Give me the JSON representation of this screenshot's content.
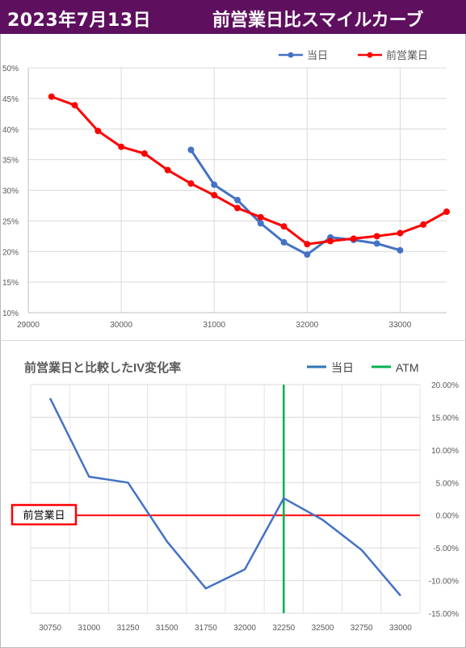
{
  "header": {
    "date": "2023年7月13日",
    "title": "前営業日比スマイルカーブ"
  },
  "chart_data": [
    {
      "type": "line",
      "title": "",
      "legend_position": "top-right",
      "x_ticks": [
        "29000",
        "30000",
        "31000",
        "32000",
        "33000"
      ],
      "y_ticks": [
        "50%",
        "45%",
        "40%",
        "35%",
        "30%",
        "25%",
        "20%",
        "15%",
        "10%"
      ],
      "xlim": [
        29000,
        33500
      ],
      "ylim": [
        10,
        50
      ],
      "grid": true,
      "series": [
        {
          "name": "当日",
          "color": "#4472c4",
          "x": [
            30750,
            31000,
            31250,
            31500,
            31750,
            32000,
            32250,
            32500,
            32750,
            33000
          ],
          "y": [
            36.6,
            30.9,
            28.4,
            24.6,
            21.5,
            19.5,
            22.3,
            21.9,
            21.3,
            20.2
          ]
        },
        {
          "name": "前営業日",
          "color": "#ff0000",
          "x": [
            29250,
            29500,
            29750,
            30000,
            30250,
            30500,
            30750,
            31000,
            31250,
            31500,
            31750,
            32000,
            32250,
            32500,
            32750,
            33000,
            33250,
            33500
          ],
          "y": [
            45.3,
            43.9,
            39.7,
            37.1,
            36.0,
            33.3,
            31.1,
            29.2,
            27.1,
            25.6,
            24.1,
            21.2,
            21.7,
            22.1,
            22.5,
            23.0,
            24.4,
            26.5
          ]
        }
      ]
    },
    {
      "type": "line",
      "title": "前営業日と比較したIV変化率",
      "legend_position": "top-right",
      "categories": [
        "30750",
        "31000",
        "31250",
        "31500",
        "31750",
        "32000",
        "32250",
        "32500",
        "32750",
        "33000"
      ],
      "y_ticks": [
        "20.00%",
        "15.00%",
        "10.00%",
        "5.00%",
        "0.00%",
        "-5.00%",
        "-10.00%",
        "-15.00%"
      ],
      "ylim": [
        -15,
        20
      ],
      "grid": true,
      "baseline_label": "前営業日",
      "series": [
        {
          "name": "当日",
          "color": "#4472c4",
          "values": [
            17.9,
            5.9,
            5.0,
            -4.0,
            -11.2,
            -8.3,
            2.6,
            -0.7,
            -5.3,
            -12.3
          ]
        }
      ],
      "atm": {
        "name": "ATM",
        "category": "32250",
        "color": "#00b050"
      },
      "baseline": {
        "value": 0,
        "color": "#ff0000"
      },
      "legend": [
        "当日",
        "ATM"
      ]
    }
  ]
}
